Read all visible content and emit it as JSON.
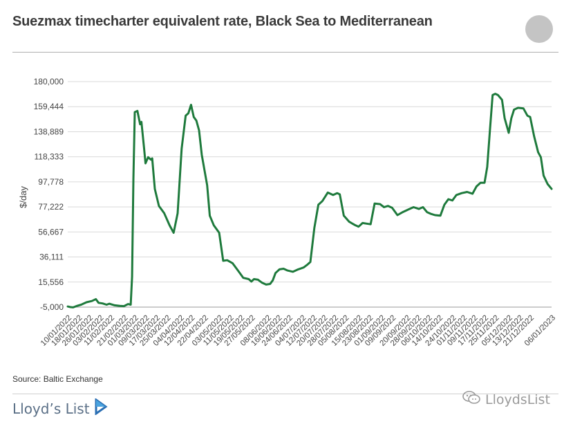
{
  "header": {
    "title": "Suezmax timecharter equivalent rate, Black Sea to Mediterranean"
  },
  "footer": {
    "source": "Source: Baltic Exchange",
    "brand": "Lloyd’s List",
    "watermark": "LloydsList"
  },
  "colors": {
    "line": "#1e7a3c",
    "grid": "#d9d9d9",
    "axis": "#555555"
  },
  "chart_data": {
    "type": "line",
    "title": "Suezmax timecharter equivalent rate, Black Sea to Mediterranean",
    "xlabel": "",
    "ylabel": "$/day",
    "ylim": [
      -5000,
      180000
    ],
    "yticks": [
      -5000,
      15556,
      36111,
      56667,
      77222,
      97778,
      118333,
      138889,
      159444,
      180000
    ],
    "ytick_labels": [
      "-5,000",
      "15,556",
      "36,111",
      "56,667",
      "77,222",
      "97,778",
      "118,333",
      "138,889",
      "159,444",
      "180,000"
    ],
    "xtick_labels": [
      "10/01/2022",
      "18/01/2022",
      "26/01/2022",
      "03/02/2022",
      "11/02/2022",
      "21/02/2022",
      "01/03/2022",
      "09/03/2022",
      "17/03/2022",
      "25/03/2022",
      "04/04/2022",
      "12/04/2022",
      "22/04/2022",
      "03/05/2022",
      "11/05/2022",
      "19/05/2022",
      "27/05/2022",
      "08/06/2022",
      "16/06/2022",
      "24/06/2022",
      "04/07/2022",
      "12/07/2022",
      "20/07/2022",
      "28/07/2022",
      "05/08/2022",
      "15/08/2022",
      "23/08/2022",
      "01/09/2022",
      "09/09/2022",
      "20/09/2022",
      "28/09/2022",
      "06/10/2022",
      "14/10/2022",
      "24/10/2022",
      "01/11/2022",
      "09/11/2022",
      "17/11/2022",
      "25/11/2022",
      "05/12/2022",
      "13/12/2022",
      "21/12/2022",
      "06/01/2023"
    ],
    "grid": true,
    "series": [
      {
        "values": [
          [
            "10/01/2022",
            -4500
          ],
          [
            "12/01/2022",
            -5000
          ],
          [
            "14/01/2022",
            -5200
          ],
          [
            "17/01/2022",
            -4000
          ],
          [
            "20/01/2022",
            -3000
          ],
          [
            "24/01/2022",
            -1000
          ],
          [
            "28/01/2022",
            0
          ],
          [
            "31/01/2022",
            1500
          ],
          [
            "02/02/2022",
            -1500
          ],
          [
            "05/02/2022",
            -2000
          ],
          [
            "08/02/2022",
            -3000
          ],
          [
            "10/02/2022",
            -2200
          ],
          [
            "14/02/2022",
            -3500
          ],
          [
            "18/02/2022",
            -4000
          ],
          [
            "21/02/2022",
            -4200
          ],
          [
            "24/02/2022",
            -2500
          ],
          [
            "26/02/2022",
            -3000
          ],
          [
            "27/02/2022",
            20000
          ],
          [
            "28/02/2022",
            100000
          ],
          [
            "01/03/2022",
            155000
          ],
          [
            "03/03/2022",
            156000
          ],
          [
            "05/03/2022",
            145000
          ],
          [
            "06/03/2022",
            147000
          ],
          [
            "08/03/2022",
            125000
          ],
          [
            "09/03/2022",
            113000
          ],
          [
            "11/03/2022",
            118000
          ],
          [
            "13/03/2022",
            116000
          ],
          [
            "14/03/2022",
            117000
          ],
          [
            "16/03/2022",
            92000
          ],
          [
            "19/03/2022",
            78000
          ],
          [
            "23/03/2022",
            72000
          ],
          [
            "27/03/2022",
            62000
          ],
          [
            "30/03/2022",
            56000
          ],
          [
            "02/04/2022",
            72000
          ],
          [
            "05/04/2022",
            125000
          ],
          [
            "08/04/2022",
            152000
          ],
          [
            "10/04/2022",
            154000
          ],
          [
            "12/04/2022",
            161000
          ],
          [
            "14/04/2022",
            151000
          ],
          [
            "16/04/2022",
            148000
          ],
          [
            "18/04/2022",
            140000
          ],
          [
            "20/04/2022",
            120000
          ],
          [
            "24/04/2022",
            95000
          ],
          [
            "26/04/2022",
            70000
          ],
          [
            "29/04/2022",
            62000
          ],
          [
            "03/05/2022",
            56000
          ],
          [
            "06/05/2022",
            33000
          ],
          [
            "09/05/2022",
            33500
          ],
          [
            "13/05/2022",
            31000
          ],
          [
            "17/05/2022",
            25000
          ],
          [
            "21/05/2022",
            19000
          ],
          [
            "25/05/2022",
            18000
          ],
          [
            "27/05/2022",
            16000
          ],
          [
            "29/05/2022",
            18000
          ],
          [
            "01/06/2022",
            17500
          ],
          [
            "04/06/2022",
            15000
          ],
          [
            "07/06/2022",
            13500
          ],
          [
            "10/06/2022",
            14000
          ],
          [
            "12/06/2022",
            17000
          ],
          [
            "14/06/2022",
            23000
          ],
          [
            "17/06/2022",
            26000
          ],
          [
            "20/06/2022",
            26500
          ],
          [
            "23/06/2022",
            25000
          ],
          [
            "27/06/2022",
            24000
          ],
          [
            "01/07/2022",
            26000
          ],
          [
            "05/07/2022",
            27500
          ],
          [
            "08/07/2022",
            30000
          ],
          [
            "10/07/2022",
            32000
          ],
          [
            "13/07/2022",
            60000
          ],
          [
            "16/07/2022",
            79000
          ],
          [
            "19/07/2022",
            82000
          ],
          [
            "23/07/2022",
            89000
          ],
          [
            "27/07/2022",
            87000
          ],
          [
            "30/07/2022",
            88500
          ],
          [
            "01/08/2022",
            87500
          ],
          [
            "04/08/2022",
            70000
          ],
          [
            "08/08/2022",
            65000
          ],
          [
            "12/08/2022",
            62500
          ],
          [
            "15/08/2022",
            61000
          ],
          [
            "18/08/2022",
            64000
          ],
          [
            "21/08/2022",
            63500
          ],
          [
            "24/08/2022",
            63000
          ],
          [
            "27/08/2022",
            80000
          ],
          [
            "31/08/2022",
            79500
          ],
          [
            "03/09/2022",
            77000
          ],
          [
            "06/09/2022",
            78000
          ],
          [
            "09/09/2022",
            76500
          ],
          [
            "13/09/2022",
            70500
          ],
          [
            "17/09/2022",
            73000
          ],
          [
            "21/09/2022",
            75000
          ],
          [
            "25/09/2022",
            77000
          ],
          [
            "29/09/2022",
            75500
          ],
          [
            "02/10/2022",
            77000
          ],
          [
            "05/10/2022",
            73000
          ],
          [
            "08/10/2022",
            71500
          ],
          [
            "11/10/2022",
            70500
          ],
          [
            "15/10/2022",
            70000
          ],
          [
            "18/10/2022",
            79000
          ],
          [
            "21/10/2022",
            83500
          ],
          [
            "24/10/2022",
            82500
          ],
          [
            "27/10/2022",
            87000
          ],
          [
            "31/10/2022",
            88500
          ],
          [
            "04/11/2022",
            89500
          ],
          [
            "08/11/2022",
            88000
          ],
          [
            "11/11/2022",
            94000
          ],
          [
            "14/11/2022",
            97000
          ],
          [
            "17/11/2022",
            97000
          ],
          [
            "19/11/2022",
            110000
          ],
          [
            "21/11/2022",
            140000
          ],
          [
            "23/11/2022",
            169000
          ],
          [
            "25/11/2022",
            170000
          ],
          [
            "27/11/2022",
            169000
          ],
          [
            "30/11/2022",
            165000
          ],
          [
            "02/12/2022",
            150000
          ],
          [
            "05/12/2022",
            138000
          ],
          [
            "07/12/2022",
            150000
          ],
          [
            "09/12/2022",
            157000
          ],
          [
            "12/12/2022",
            158500
          ],
          [
            "16/12/2022",
            158000
          ],
          [
            "19/12/2022",
            152000
          ],
          [
            "21/12/2022",
            151000
          ],
          [
            "24/12/2022",
            135000
          ],
          [
            "27/12/2022",
            122000
          ],
          [
            "29/12/2022",
            118000
          ],
          [
            "31/12/2022",
            103000
          ],
          [
            "03/01/2023",
            96000
          ],
          [
            "06/01/2023",
            92000
          ]
        ]
      }
    ]
  }
}
